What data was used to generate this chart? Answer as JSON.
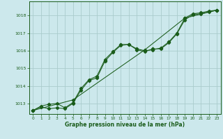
{
  "background_color": "#cce8ec",
  "grid_color": "#aacccc",
  "line_color": "#1a5c1a",
  "xlabel": "Graphe pression niveau de la mer (hPa)",
  "xlim": [
    -0.5,
    23.5
  ],
  "ylim": [
    1012.4,
    1018.8
  ],
  "yticks": [
    1013,
    1014,
    1015,
    1016,
    1017,
    1018
  ],
  "xticks": [
    0,
    1,
    2,
    3,
    4,
    5,
    6,
    7,
    8,
    9,
    10,
    11,
    12,
    13,
    14,
    15,
    16,
    17,
    18,
    19,
    20,
    21,
    22,
    23
  ],
  "series1": {
    "x": [
      0,
      1,
      2,
      3,
      4,
      5,
      6,
      7,
      8,
      9,
      10,
      11,
      12,
      13,
      14,
      15,
      16,
      17,
      18,
      19,
      20,
      21,
      22,
      23
    ],
    "y": [
      1012.6,
      1012.85,
      1012.95,
      1013.0,
      1012.75,
      1013.05,
      1013.85,
      1014.35,
      1014.55,
      1015.5,
      1015.95,
      1016.35,
      1016.35,
      1016.1,
      1016.0,
      1016.05,
      1016.15,
      1016.5,
      1017.0,
      1017.85,
      1018.1,
      1018.15,
      1018.25,
      1018.3
    ]
  },
  "series2": {
    "x": [
      0,
      1,
      2,
      3,
      4,
      5,
      6,
      7,
      8,
      9,
      10,
      11,
      12,
      13,
      14,
      15,
      16,
      17,
      18,
      19,
      20,
      21,
      22,
      23
    ],
    "y": [
      1012.6,
      1012.8,
      1012.7,
      1012.75,
      1012.7,
      1013.0,
      1013.75,
      1014.3,
      1014.45,
      1015.4,
      1015.9,
      1016.3,
      1016.35,
      1016.05,
      1015.95,
      1016.1,
      1016.1,
      1016.45,
      1016.95,
      1017.75,
      1018.05,
      1018.1,
      1018.2,
      1018.3
    ]
  },
  "series3": {
    "x": [
      0,
      5,
      14,
      19,
      23
    ],
    "y": [
      1012.6,
      1013.2,
      1016.05,
      1017.85,
      1018.3
    ]
  }
}
